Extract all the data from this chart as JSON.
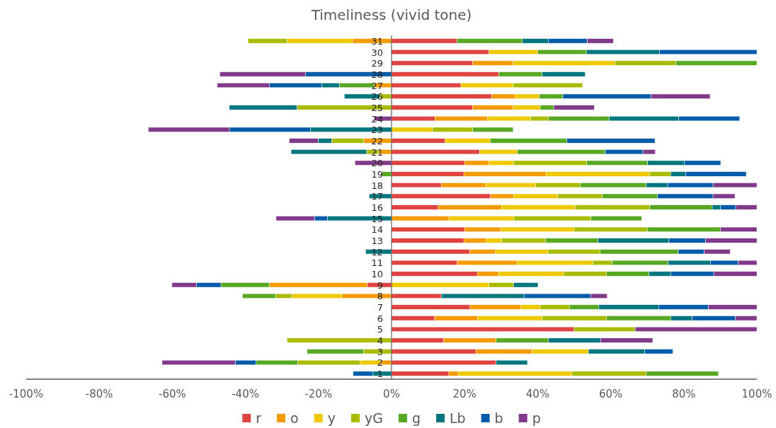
{
  "chart_data": {
    "type": "bar",
    "orientation": "horizontal",
    "stacked": true,
    "title": "Timeliness (vivid tone)",
    "categories": [
      "31",
      "30",
      "29",
      "28",
      "27",
      "26",
      "25",
      "24",
      "23",
      "22",
      "21",
      "20",
      "19",
      "18",
      "17",
      "16",
      "15",
      "14",
      "13",
      "12",
      "11",
      "10",
      "9",
      "8",
      "7",
      "6",
      "5",
      "4",
      "3",
      "2",
      "1"
    ],
    "series": [
      {
        "name": "r",
        "color": "#df4440",
        "values": [
          17.9,
          26.7,
          22.2,
          29.4,
          19.0,
          27.4,
          22.2,
          11.9,
          null,
          14.7,
          24.1,
          20.0,
          19.8,
          13.6,
          27.1,
          12.8,
          null,
          20,
          19.8,
          21.4,
          18.0,
          23.5,
          -6.7,
          13.6,
          21.5,
          11.8,
          50.0,
          14.3,
          23.1,
          28.6,
          15.7
        ]
      },
      {
        "name": "o",
        "color": "#f39b00",
        "values": [
          -10.7,
          null,
          11.1,
          null,
          -4.8,
          6.5,
          11.1,
          14.3,
          null,
          -7.7,
          -3.4,
          6.7,
          22.6,
          12.2,
          6.3,
          17.3,
          15.7,
          10,
          6.0,
          7.1,
          16.4,
          5.9,
          -26.7,
          -13.6,
          13.8,
          11.8,
          null,
          14.3,
          15.4,
          -2.9,
          2.6
        ]
      },
      {
        "name": "y",
        "color": "#efc900",
        "values": [
          -17.9,
          13.3,
          27.8,
          null,
          14.3,
          6.5,
          7.4,
          11.9,
          11.1,
          12.3,
          10.3,
          6.7,
          28.2,
          13.7,
          12.1,
          20.2,
          17.8,
          20,
          4.4,
          14.3,
          20.7,
          17.6,
          26.7,
          -13.6,
          5.3,
          17.6,
          null,
          null,
          15.4,
          -5.7,
          31.0
        ]
      },
      {
        "name": "yG",
        "color": "#a9bc00",
        "values": [
          -10.7,
          null,
          16.7,
          null,
          19.0,
          -3.2,
          -25.9,
          4.8,
          11.1,
          -8.7,
          -3.4,
          20.0,
          5.8,
          12.1,
          12.2,
          20.4,
          21.1,
          20,
          12.0,
          14.3,
          5.3,
          11.8,
          6.7,
          -4.5,
          8.1,
          17.6,
          16.7,
          -28.6,
          -7.7,
          -17.1,
          20.4
        ]
      },
      {
        "name": "g",
        "color": "#59a824",
        "values": [
          17.9,
          13.3,
          22.2,
          11.8,
          -9.5,
          6.5,
          3.7,
          16.7,
          11.1,
          21.0,
          24.1,
          16.7,
          -2.6,
          18.1,
          15.1,
          17.1,
          13.9,
          20,
          14.3,
          21.4,
          15.3,
          11.7,
          -13.3,
          -9.1,
          8.0,
          17.6,
          null,
          14.3,
          -15.4,
          -11.4,
          19.8
        ]
      },
      {
        "name": "Lb",
        "color": "#00767f",
        "values": [
          7.1,
          20.0,
          null,
          11.8,
          -4.8,
          -9.7,
          -18.5,
          19.0,
          -22.2,
          -3.7,
          -20.7,
          10.0,
          4.1,
          5.9,
          -6.1,
          2.2,
          -17.6,
          null,
          19.4,
          -7.1,
          11.6,
          5.9,
          6.7,
          22.7,
          16.4,
          5.9,
          null,
          14.3,
          15.4,
          8.6,
          -5.1
        ]
      },
      {
        "name": "b",
        "color": "#005ca8",
        "values": [
          10.7,
          26.7,
          null,
          -23.5,
          -14.3,
          24.2,
          null,
          16.7,
          -22.2,
          24.1,
          10.3,
          10.0,
          16.6,
          12.4,
          15.2,
          4.2,
          -3.5,
          null,
          10.1,
          7.1,
          7.6,
          11.8,
          -6.7,
          18.2,
          13.6,
          11.8,
          null,
          null,
          7.7,
          -5.7,
          -5.4
        ]
      },
      {
        "name": "p",
        "color": "#813a8a",
        "values": [
          7.1,
          null,
          null,
          -23.5,
          -14.3,
          16.1,
          11.1,
          -4.8,
          -22.2,
          -7.9,
          3.4,
          -10.0,
          null,
          12.0,
          6.0,
          5.8,
          -10.5,
          10,
          14.0,
          7.1,
          5.1,
          11.8,
          -6.7,
          4.5,
          13.3,
          5.9,
          33.3,
          14.3,
          null,
          -20.0,
          null
        ]
      }
    ],
    "xlim": [
      -100,
      100
    ],
    "xticks": [
      {
        "value": -100,
        "label": "-100%"
      },
      {
        "value": -80,
        "label": "-80%"
      },
      {
        "value": -60,
        "label": "-60%"
      },
      {
        "value": -40,
        "label": "-40%"
      },
      {
        "value": -20,
        "label": "-20%"
      },
      {
        "value": 0,
        "label": "0%"
      },
      {
        "value": 20,
        "label": "20%"
      },
      {
        "value": 40,
        "label": "40%"
      },
      {
        "value": 60,
        "label": "60%"
      },
      {
        "value": 80,
        "label": "80%"
      },
      {
        "value": 100,
        "label": "100%"
      }
    ],
    "legend": "bottom"
  }
}
